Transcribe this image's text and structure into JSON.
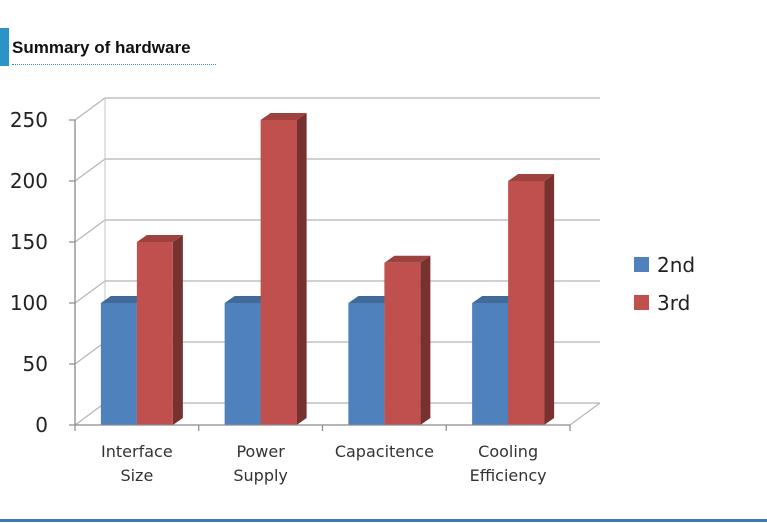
{
  "chart_data": {
    "type": "bar",
    "title": "Summary of hardware",
    "categories": [
      [
        "Interface",
        "Size"
      ],
      [
        "Power",
        "Supply"
      ],
      [
        "Capacitence"
      ],
      [
        "Cooling",
        "Efficiency"
      ]
    ],
    "series": [
      {
        "name": "2nd",
        "values": [
          100,
          100,
          100,
          100
        ],
        "color": "#4f81bd"
      },
      {
        "name": "3rd",
        "values": [
          150,
          250,
          133,
          200
        ],
        "color": "#c0504d"
      }
    ],
    "ylim": [
      0,
      250
    ],
    "yticks": [
      0,
      50,
      100,
      150,
      200,
      250
    ],
    "grid": true,
    "legend": "right",
    "style": "3d-clustered-column"
  }
}
